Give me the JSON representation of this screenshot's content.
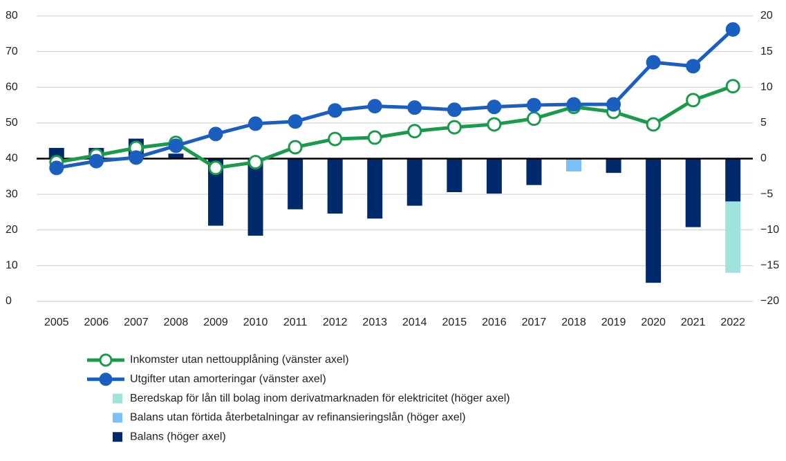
{
  "chart_data": {
    "type": "bar-line",
    "categories": [
      "2005",
      "2006",
      "2007",
      "2008",
      "2009",
      "2010",
      "2011",
      "2012",
      "2013",
      "2014",
      "2015",
      "2016",
      "2017",
      "2018",
      "2019",
      "2020",
      "2021",
      "2022"
    ],
    "series": [
      {
        "name": "Inkomster utan nettoupplåning (vänster axel)",
        "type": "line",
        "marker": "hollow",
        "color": "#1a9a4a",
        "values": [
          39,
          40.9,
          43,
          44.4,
          37.4,
          39,
          43.2,
          45.5,
          45.9,
          47.7,
          48.8,
          49.6,
          51.2,
          54.5,
          53.1,
          49.6,
          56.4,
          60.3
        ]
      },
      {
        "name": "Utgifter utan amorteringar (vänster axel)",
        "type": "line",
        "marker": "filled",
        "color": "#1a5fc0",
        "values": [
          37.4,
          39.3,
          40.3,
          43.6,
          46.9,
          49.8,
          50.4,
          53.5,
          54.7,
          54.3,
          53.7,
          54.5,
          55,
          55.2,
          55.2,
          67,
          65.9,
          76.2
        ]
      },
      {
        "name": "Beredskap för lån till bolag inom derivatmarknaden för elektricitet (höger axel)",
        "type": "bar",
        "axis": "y2",
        "color": "#a0e3dc",
        "values": [
          null,
          null,
          null,
          null,
          null,
          null,
          null,
          null,
          null,
          null,
          null,
          null,
          null,
          null,
          null,
          null,
          null,
          -10
        ]
      },
      {
        "name": "Balans utan förtida återbetalningar av refinansieringslån (höger axel)",
        "type": "bar",
        "axis": "y2",
        "color": "#7abff5",
        "values": [
          null,
          null,
          null,
          null,
          null,
          null,
          null,
          null,
          null,
          null,
          null,
          null,
          null,
          -1.8,
          null,
          null,
          null,
          null
        ]
      },
      {
        "name": "Balans (höger axel)",
        "type": "bar",
        "axis": "y2",
        "color": "#002a6c",
        "values": [
          1.5,
          1.5,
          2.8,
          0.7,
          -9.4,
          -10.8,
          -7.1,
          -7.7,
          -8.4,
          -6.6,
          -4.7,
          -4.9,
          -3.7,
          null,
          -2,
          -17.4,
          -9.6,
          -6
        ]
      }
    ],
    "ylim": [
      0,
      80
    ],
    "yticks": [
      0,
      10,
      20,
      30,
      40,
      50,
      60,
      70,
      80
    ],
    "y2lim": [
      -20,
      20
    ],
    "y2ticks": [
      {
        "value": -20,
        "label": "−20"
      },
      {
        "value": -15,
        "label": "−15"
      },
      {
        "value": -10,
        "label": "−10"
      },
      {
        "value": -5,
        "label": "−5"
      },
      0,
      5,
      10,
      15,
      20
    ],
    "grid": true,
    "legend": "bottom"
  }
}
